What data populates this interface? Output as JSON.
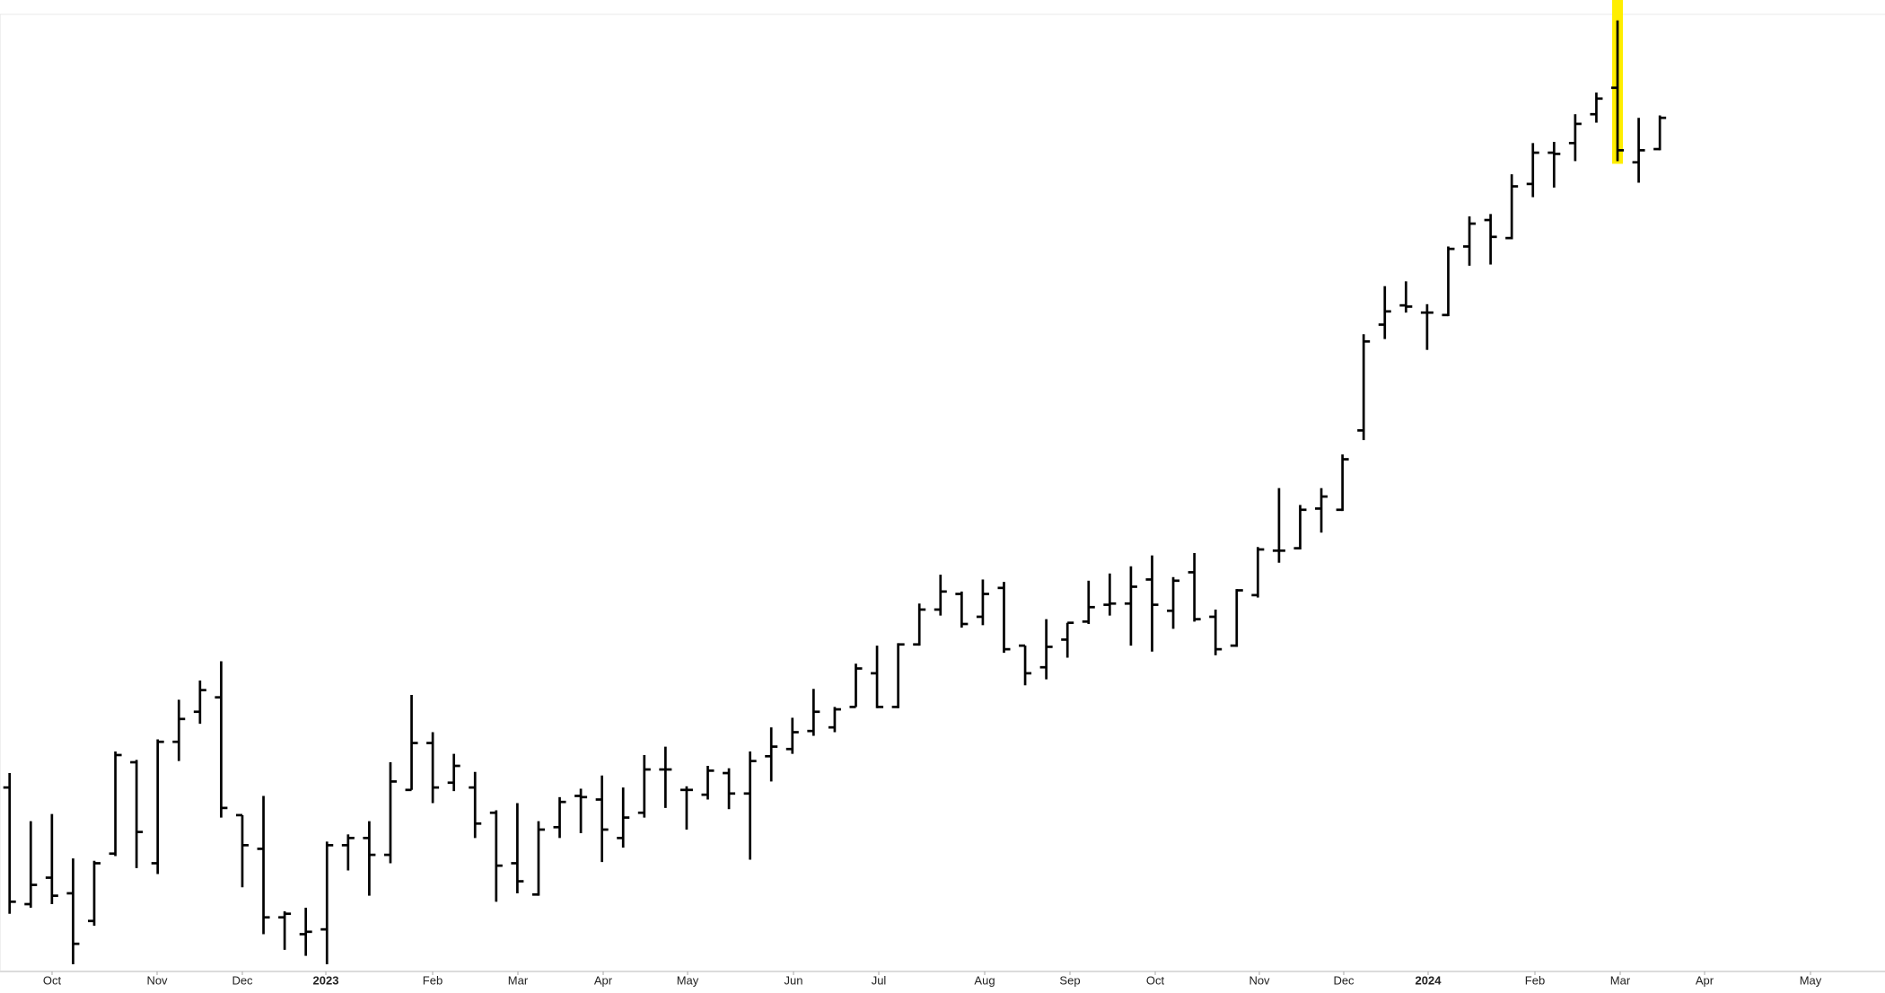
{
  "chart_data": {
    "type": "ohlc",
    "categories": [
      null,
      null,
      null,
      null,
      null,
      null,
      null,
      null,
      null,
      null,
      null,
      null,
      null,
      null,
      null,
      null,
      null,
      null,
      null,
      null,
      null,
      null,
      null,
      null,
      null,
      null,
      null,
      null,
      null,
      null,
      null,
      null,
      null,
      null,
      null,
      null,
      null,
      null,
      null,
      null,
      null,
      null,
      null,
      null,
      null,
      null,
      null,
      null,
      null,
      null,
      null,
      null,
      null,
      null,
      null,
      null,
      null,
      null,
      null,
      null,
      null,
      null,
      null,
      null,
      null,
      null,
      null,
      null,
      null,
      null,
      null,
      null,
      null,
      null,
      null,
      null,
      null,
      null,
      null
    ],
    "open": [
      175,
      78,
      100,
      87,
      64,
      120,
      196,
      112,
      213,
      238,
      250,
      152,
      124,
      67,
      53,
      57,
      127,
      133,
      119,
      173,
      212,
      179,
      175,
      154,
      112,
      86,
      142,
      168,
      165,
      133,
      154,
      190,
      173,
      169,
      187,
      170,
      201,
      207,
      222,
      225,
      242,
      270,
      242,
      294,
      323,
      336,
      317,
      341,
      293,
      275,
      298,
      313,
      327,
      328,
      348,
      322,
      354,
      317,
      293,
      335,
      372,
      374,
      407,
      406,
      472,
      560,
      576,
      570,
      568,
      625,
      647,
      632,
      677,
      703,
      711,
      735,
      757,
      695,
      706
    ],
    "high": [
      187,
      147,
      153,
      116,
      114,
      205,
      198,
      215,
      248,
      264,
      280,
      152,
      168,
      72,
      75,
      130,
      136,
      147,
      196,
      252,
      221,
      203,
      188,
      156,
      162,
      147,
      167,
      174,
      185,
      175,
      202,
      209,
      176,
      193,
      191,
      205,
      225,
      233,
      257,
      242,
      278,
      293,
      295,
      328,
      352,
      338,
      348,
      346,
      293,
      315,
      312,
      347,
      353,
      359,
      368,
      350,
      370,
      323,
      340,
      375,
      424,
      410,
      424,
      452,
      552,
      592,
      596,
      577,
      625,
      650,
      652,
      685,
      711,
      712,
      735,
      753,
      813,
      732,
      734
    ],
    "low": [
      70,
      75,
      78,
      28,
      60,
      118,
      108,
      103,
      197,
      228,
      150,
      92,
      53,
      40,
      35,
      28,
      106,
      85,
      112,
      173,
      162,
      172,
      133,
      80,
      87,
      85,
      133,
      137,
      113,
      125,
      150,
      158,
      140,
      165,
      157,
      115,
      180,
      203,
      218,
      221,
      242,
      241,
      241,
      293,
      318,
      308,
      310,
      287,
      260,
      265,
      283,
      311,
      318,
      293,
      288,
      307,
      313,
      285,
      292,
      333,
      362,
      373,
      387,
      405,
      464,
      548,
      570,
      539,
      567,
      609,
      610,
      631,
      666,
      674,
      696,
      728,
      696,
      678,
      705
    ],
    "close": [
      80,
      94,
      85,
      45,
      112,
      202,
      138,
      213,
      232,
      256,
      158,
      127,
      67,
      70,
      55,
      127,
      133,
      119,
      180,
      212,
      175,
      193,
      145,
      110,
      97,
      140,
      163,
      167,
      140,
      150,
      190,
      190,
      173,
      189,
      170,
      197,
      209,
      221,
      238,
      240,
      274,
      242,
      294,
      323,
      338,
      311,
      336,
      290,
      270,
      292,
      312,
      325,
      328,
      342,
      327,
      347,
      315,
      290,
      339,
      373,
      372,
      406,
      417,
      448,
      546,
      571,
      575,
      570,
      623,
      644,
      633,
      675,
      703,
      702,
      727,
      748,
      705,
      705,
      732
    ],
    "color": "#000000",
    "ylim": [
      22,
      830
    ],
    "highlighted_bar": 76,
    "highlight_color": "#ffee00",
    "x_axis_labels": [
      "Oct",
      "Nov",
      "Dec",
      "2023",
      "Feb",
      "Mar",
      "Apr",
      "May",
      "Jun",
      "Jul",
      "Aug",
      "Sep",
      "Oct",
      "Nov",
      "Dec",
      "2024",
      "Feb",
      "Mar",
      "Apr",
      "May"
    ]
  }
}
